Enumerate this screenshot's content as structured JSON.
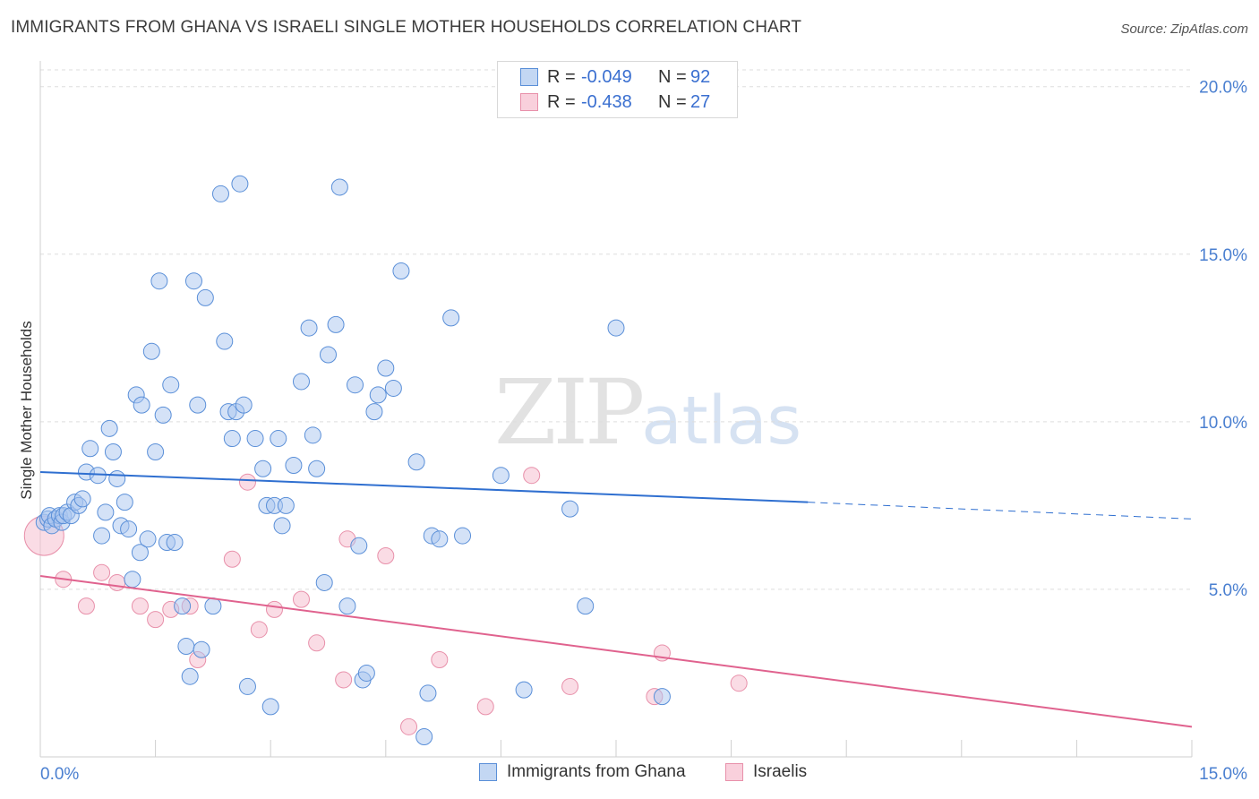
{
  "title": "IMMIGRANTS FROM GHANA VS ISRAELI SINGLE MOTHER HOUSEHOLDS CORRELATION CHART",
  "source": "Source: ZipAtlas.com",
  "watermark": {
    "zip": "ZIP",
    "atlas": "atlas"
  },
  "legend": {
    "rows": [
      {
        "r_label": "R =",
        "r_value": "-0.049",
        "n_label": "N =",
        "n_value": "92"
      },
      {
        "r_label": "R =",
        "r_value": "-0.438",
        "n_label": "N =",
        "n_value": "27"
      }
    ]
  },
  "bottom_legend": [
    "Immigrants from Ghana",
    "Israelis"
  ],
  "colors": {
    "blue_fill": "#a9c6f0",
    "blue_stroke": "#5a8fd8",
    "blue_line": "#2f6fd0",
    "pink_fill": "#f6c0d0",
    "pink_stroke": "#e890aa",
    "pink_line": "#e0628e",
    "tick_text": "#4a7fd0",
    "grid": "#dddddd"
  },
  "chart_data": {
    "type": "scatter",
    "title": "IMMIGRANTS FROM GHANA VS ISRAELI SINGLE MOTHER HOUSEHOLDS CORRELATION CHART",
    "xlabel": "",
    "ylabel": "Single Mother Households",
    "xlim": [
      0,
      15
    ],
    "ylim": [
      0,
      20
    ],
    "x_tick_labels": [
      "0.0%",
      "15.0%"
    ],
    "y_ticks": [
      5,
      10,
      15,
      20
    ],
    "y_tick_labels": [
      "5.0%",
      "10.0%",
      "15.0%",
      "20.0%"
    ],
    "grid": true,
    "legend_position": "top-center",
    "series": [
      {
        "name": "Immigrants from Ghana",
        "color": "#a9c6f0",
        "points": [
          [
            0.05,
            7.0
          ],
          [
            0.1,
            7.1
          ],
          [
            0.12,
            7.2
          ],
          [
            0.15,
            6.9
          ],
          [
            0.2,
            7.1
          ],
          [
            0.25,
            7.2
          ],
          [
            0.28,
            7.0
          ],
          [
            0.3,
            7.2
          ],
          [
            0.35,
            7.3
          ],
          [
            0.4,
            7.2
          ],
          [
            0.45,
            7.6
          ],
          [
            0.5,
            7.5
          ],
          [
            0.55,
            7.7
          ],
          [
            0.6,
            8.5
          ],
          [
            0.65,
            9.2
          ],
          [
            0.75,
            8.4
          ],
          [
            0.8,
            6.6
          ],
          [
            0.85,
            7.3
          ],
          [
            0.9,
            9.8
          ],
          [
            0.95,
            9.1
          ],
          [
            1.0,
            8.3
          ],
          [
            1.05,
            6.9
          ],
          [
            1.1,
            7.6
          ],
          [
            1.15,
            6.8
          ],
          [
            1.2,
            5.3
          ],
          [
            1.25,
            10.8
          ],
          [
            1.3,
            6.1
          ],
          [
            1.32,
            10.5
          ],
          [
            1.4,
            6.5
          ],
          [
            1.45,
            12.1
          ],
          [
            1.5,
            9.1
          ],
          [
            1.55,
            14.2
          ],
          [
            1.6,
            10.2
          ],
          [
            1.65,
            6.4
          ],
          [
            1.7,
            11.1
          ],
          [
            1.75,
            6.4
          ],
          [
            1.85,
            4.5
          ],
          [
            1.9,
            3.3
          ],
          [
            1.95,
            2.4
          ],
          [
            2.0,
            14.2
          ],
          [
            2.05,
            10.5
          ],
          [
            2.1,
            3.2
          ],
          [
            2.15,
            13.7
          ],
          [
            2.25,
            4.5
          ],
          [
            2.35,
            16.8
          ],
          [
            2.4,
            12.4
          ],
          [
            2.45,
            10.3
          ],
          [
            2.5,
            9.5
          ],
          [
            2.55,
            10.3
          ],
          [
            2.6,
            17.1
          ],
          [
            2.65,
            10.5
          ],
          [
            2.7,
            2.1
          ],
          [
            2.8,
            9.5
          ],
          [
            2.9,
            8.6
          ],
          [
            2.95,
            7.5
          ],
          [
            3.0,
            1.5
          ],
          [
            3.05,
            7.5
          ],
          [
            3.1,
            9.5
          ],
          [
            3.15,
            6.9
          ],
          [
            3.2,
            7.5
          ],
          [
            3.3,
            8.7
          ],
          [
            3.4,
            11.2
          ],
          [
            3.5,
            12.8
          ],
          [
            3.55,
            9.6
          ],
          [
            3.6,
            8.6
          ],
          [
            3.7,
            5.2
          ],
          [
            3.75,
            12.0
          ],
          [
            3.85,
            12.9
          ],
          [
            3.9,
            17.0
          ],
          [
            4.0,
            4.5
          ],
          [
            4.1,
            11.1
          ],
          [
            4.15,
            6.3
          ],
          [
            4.2,
            2.3
          ],
          [
            4.25,
            2.5
          ],
          [
            4.35,
            10.3
          ],
          [
            4.4,
            10.8
          ],
          [
            4.5,
            11.6
          ],
          [
            4.6,
            11.0
          ],
          [
            4.7,
            14.5
          ],
          [
            4.9,
            8.8
          ],
          [
            5.0,
            0.6
          ],
          [
            5.05,
            1.9
          ],
          [
            5.1,
            6.6
          ],
          [
            5.2,
            6.5
          ],
          [
            5.35,
            13.1
          ],
          [
            5.5,
            6.6
          ],
          [
            6.0,
            8.4
          ],
          [
            6.3,
            2.0
          ],
          [
            6.9,
            7.4
          ],
          [
            7.1,
            4.5
          ],
          [
            7.5,
            12.8
          ],
          [
            8.1,
            1.8
          ]
        ],
        "trend": {
          "x": [
            0,
            10
          ],
          "y": [
            8.5,
            7.6
          ],
          "dashed_extension": {
            "x": [
              10,
              15
            ],
            "y": [
              7.6,
              7.1
            ]
          }
        }
      },
      {
        "name": "Israelis",
        "color": "#f6c0d0",
        "points": [
          [
            0.05,
            6.6
          ],
          [
            0.3,
            5.3
          ],
          [
            0.6,
            4.5
          ],
          [
            0.8,
            5.5
          ],
          [
            1.0,
            5.2
          ],
          [
            1.3,
            4.5
          ],
          [
            1.5,
            4.1
          ],
          [
            1.7,
            4.4
          ],
          [
            1.95,
            4.5
          ],
          [
            2.05,
            2.9
          ],
          [
            2.5,
            5.9
          ],
          [
            2.7,
            8.2
          ],
          [
            2.85,
            3.8
          ],
          [
            3.05,
            4.4
          ],
          [
            3.4,
            4.7
          ],
          [
            3.6,
            3.4
          ],
          [
            3.95,
            2.3
          ],
          [
            4.0,
            6.5
          ],
          [
            4.5,
            6.0
          ],
          [
            4.8,
            0.9
          ],
          [
            5.2,
            2.9
          ],
          [
            5.8,
            1.5
          ],
          [
            6.4,
            8.4
          ],
          [
            6.9,
            2.1
          ],
          [
            8.0,
            1.8
          ],
          [
            8.1,
            3.1
          ],
          [
            9.1,
            2.2
          ]
        ],
        "trend": {
          "x": [
            0,
            15
          ],
          "y": [
            5.4,
            0.9
          ]
        }
      }
    ]
  }
}
